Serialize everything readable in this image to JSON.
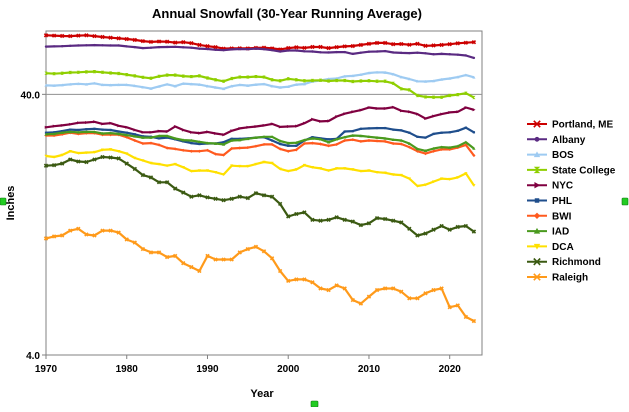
{
  "chart_data": {
    "type": "line",
    "title": "Annual Snowfall (30-Year Running Average)",
    "xlabel": "Year",
    "ylabel": "Inches",
    "yscale": "log",
    "ylim": [
      4.0,
      70
    ],
    "xlim": [
      1970,
      2024
    ],
    "y_ticks": [
      {
        "value": 4.0,
        "label": "4.0"
      },
      {
        "value": 40.0,
        "label": "40.0"
      }
    ],
    "x_ticks": [
      1970,
      1980,
      1990,
      2000,
      2010,
      2020
    ],
    "x": [
      1970,
      1971,
      1972,
      1973,
      1974,
      1975,
      1976,
      1977,
      1978,
      1979,
      1980,
      1981,
      1982,
      1983,
      1984,
      1985,
      1986,
      1987,
      1988,
      1989,
      1990,
      1991,
      1992,
      1993,
      1994,
      1995,
      1996,
      1997,
      1998,
      1999,
      2000,
      2001,
      2002,
      2003,
      2004,
      2005,
      2006,
      2007,
      2008,
      2009,
      2010,
      2011,
      2012,
      2013,
      2014,
      2015,
      2016,
      2017,
      2018,
      2019,
      2020,
      2021,
      2022,
      2023
    ],
    "grid": "horizontal at 40.0",
    "legend": "right",
    "series": [
      {
        "name": "Portland, ME",
        "color": "#cc0000",
        "marker": "x",
        "values": [
          67.4,
          67.2,
          67.0,
          66.9,
          67.2,
          67.4,
          66.9,
          66.4,
          66.0,
          65.6,
          65.2,
          64.7,
          64.0,
          63.6,
          63.8,
          63.7,
          63.2,
          63.4,
          62.9,
          61.9,
          61.2,
          60.7,
          59.9,
          60.0,
          60.1,
          60.0,
          60.3,
          60.4,
          60.0,
          59.5,
          60.2,
          60.6,
          60.3,
          60.8,
          60.8,
          60.2,
          60.7,
          61.1,
          61.3,
          61.9,
          62.5,
          63.0,
          63.0,
          62.3,
          62.4,
          62.0,
          62.5,
          61.4,
          61.6,
          61.9,
          62.3,
          62.8,
          63.1,
          63.4
        ]
      },
      {
        "name": "Albany",
        "color": "#5a2a82",
        "marker": "circle",
        "values": [
          61.0,
          61.1,
          61.2,
          61.4,
          61.6,
          61.7,
          61.8,
          61.7,
          61.6,
          61.6,
          61.1,
          60.7,
          60.2,
          60.4,
          60.7,
          60.8,
          60.9,
          60.6,
          60.4,
          59.9,
          59.7,
          59.3,
          59.1,
          59.5,
          59.7,
          59.6,
          59.9,
          59.6,
          59.1,
          58.4,
          58.9,
          58.9,
          58.5,
          58.4,
          58.0,
          57.9,
          58.1,
          58.1,
          57.2,
          57.8,
          58.3,
          58.4,
          58.6,
          57.9,
          57.7,
          57.6,
          57.8,
          57.5,
          57.0,
          57.2,
          57.0,
          56.8,
          56.4,
          55.2
        ]
      },
      {
        "name": "BOS",
        "color": "#9ecbf2",
        "marker": "triangle",
        "values": [
          43.3,
          43.2,
          43.4,
          43.7,
          43.9,
          43.7,
          44.1,
          43.5,
          43.4,
          43.5,
          43.5,
          43.1,
          42.6,
          42.1,
          42.9,
          43.7,
          43.0,
          44.0,
          43.8,
          43.6,
          43.0,
          42.5,
          42.0,
          43.0,
          43.5,
          43.2,
          43.6,
          43.8,
          43.0,
          42.5,
          42.8,
          43.6,
          43.8,
          44.8,
          45.2,
          45.8,
          46.0,
          46.9,
          47.1,
          47.6,
          48.3,
          48.6,
          48.5,
          47.8,
          46.6,
          45.8,
          44.9,
          44.8,
          45.0,
          45.6,
          46.0,
          46.6,
          47.4,
          46.5
        ]
      },
      {
        "name": "State College",
        "color": "#8fcf00",
        "marker": "hourglass",
        "values": [
          48.2,
          48.0,
          48.2,
          48.5,
          48.6,
          48.8,
          48.9,
          48.6,
          48.3,
          48.1,
          47.6,
          47.1,
          46.5,
          46.1,
          46.9,
          47.4,
          47.4,
          47.0,
          46.8,
          47.1,
          46.2,
          45.5,
          44.9,
          46.0,
          46.6,
          46.6,
          46.8,
          46.6,
          45.5,
          45.1,
          45.9,
          45.5,
          45.1,
          45.2,
          45.3,
          45.0,
          45.2,
          45.2,
          44.8,
          45.0,
          45.1,
          44.9,
          44.9,
          44.1,
          42.0,
          41.6,
          39.6,
          39.1,
          39.0,
          39.0,
          39.6,
          39.9,
          40.4,
          38.9
        ]
      },
      {
        "name": "NYC",
        "color": "#800040",
        "marker": "triangle-right",
        "values": [
          29.9,
          30.2,
          30.4,
          30.7,
          31.1,
          31.2,
          31.4,
          30.8,
          31.0,
          30.3,
          29.9,
          29.2,
          28.6,
          28.6,
          28.9,
          28.8,
          30.1,
          29.2,
          28.6,
          28.4,
          28.7,
          28.3,
          28.0,
          29.0,
          29.6,
          29.9,
          30.1,
          30.4,
          30.8,
          30.0,
          30.1,
          30.2,
          31.0,
          32.1,
          31.5,
          31.6,
          32.9,
          33.7,
          34.3,
          34.8,
          35.6,
          35.3,
          35.3,
          35.7,
          34.6,
          34.3,
          33.6,
          32.3,
          33.0,
          33.6,
          34.1,
          34.3,
          35.6,
          34.9
        ]
      },
      {
        "name": "PHL",
        "color": "#1f4e8c",
        "marker": "square",
        "values": [
          28.5,
          28.6,
          28.9,
          29.3,
          29.2,
          29.4,
          29.5,
          29.3,
          29.2,
          28.8,
          28.5,
          28.1,
          27.6,
          27.5,
          27.1,
          27.3,
          26.9,
          26.4,
          26.0,
          25.8,
          25.9,
          25.9,
          26.2,
          27.0,
          27.0,
          27.1,
          27.3,
          27.4,
          26.6,
          25.8,
          25.4,
          25.4,
          26.6,
          27.4,
          27.1,
          26.9,
          27.0,
          28.8,
          28.9,
          29.5,
          29.6,
          29.7,
          29.7,
          29.3,
          29.1,
          28.5,
          27.5,
          27.3,
          28.2,
          28.5,
          28.6,
          29.0,
          29.8,
          28.6
        ]
      },
      {
        "name": "BWI",
        "color": "#ff5a1f",
        "marker": "diamond",
        "values": [
          27.8,
          27.8,
          28.1,
          28.5,
          28.2,
          28.4,
          28.4,
          28.0,
          28.0,
          28.0,
          27.4,
          26.6,
          25.9,
          26.0,
          25.6,
          24.9,
          24.7,
          24.4,
          24.2,
          24.2,
          24.4,
          23.6,
          23.4,
          24.8,
          24.9,
          25.0,
          25.3,
          25.7,
          25.7,
          24.7,
          24.2,
          24.5,
          25.9,
          26.0,
          25.8,
          25.4,
          25.7,
          26.6,
          26.8,
          26.4,
          26.6,
          26.5,
          26.4,
          25.9,
          25.8,
          25.1,
          24.2,
          23.7,
          24.2,
          24.6,
          24.6,
          25.0,
          25.6,
          23.3
        ]
      },
      {
        "name": "IAD",
        "color": "#4a9a1e",
        "marker": "triangle",
        "values": [
          28.1,
          28.2,
          28.5,
          28.7,
          28.6,
          28.7,
          28.7,
          28.3,
          28.4,
          28.2,
          27.9,
          27.6,
          27.3,
          27.3,
          27.7,
          27.7,
          27.1,
          26.7,
          26.6,
          26.3,
          26.0,
          25.9,
          25.7,
          26.6,
          26.7,
          27.0,
          27.3,
          27.5,
          27.5,
          26.5,
          26.0,
          26.1,
          26.7,
          27.1,
          26.9,
          26.2,
          26.9,
          27.4,
          27.8,
          27.7,
          27.5,
          27.3,
          27.1,
          26.8,
          26.6,
          25.9,
          24.7,
          24.3,
          24.8,
          25.1,
          25.0,
          25.3,
          26.2,
          24.8
        ]
      },
      {
        "name": "DCA",
        "color": "#ffe000",
        "marker": "triangle-down",
        "values": [
          23.2,
          23.0,
          23.4,
          24.2,
          23.8,
          23.9,
          24.0,
          24.5,
          24.6,
          24.2,
          23.7,
          22.8,
          22.3,
          21.8,
          21.6,
          21.3,
          21.6,
          21.0,
          20.3,
          20.4,
          20.4,
          20.1,
          19.7,
          21.3,
          21.2,
          21.2,
          21.6,
          22.0,
          21.8,
          20.7,
          20.3,
          20.6,
          21.4,
          21.0,
          20.8,
          20.4,
          20.8,
          20.8,
          20.6,
          20.3,
          20.4,
          20.1,
          20.0,
          19.7,
          19.6,
          19.0,
          17.8,
          18.0,
          18.5,
          19.0,
          18.9,
          19.2,
          19.9,
          17.9
        ]
      },
      {
        "name": "Richmond",
        "color": "#3b5a12",
        "marker": "x",
        "values": [
          21.3,
          21.4,
          21.7,
          22.5,
          22.1,
          22.0,
          22.5,
          23.0,
          22.9,
          22.7,
          21.7,
          20.7,
          19.6,
          19.2,
          18.4,
          18.4,
          17.4,
          16.8,
          16.2,
          16.4,
          16.1,
          15.9,
          15.7,
          15.9,
          16.2,
          16.0,
          16.7,
          16.4,
          16.2,
          15.2,
          13.6,
          13.9,
          14.1,
          13.2,
          13.1,
          13.2,
          13.5,
          13.2,
          13.0,
          12.6,
          12.8,
          13.4,
          13.3,
          13.1,
          12.9,
          12.2,
          11.5,
          11.7,
          12.1,
          12.5,
          12.1,
          12.4,
          12.5,
          11.9
        ]
      },
      {
        "name": "Raleigh",
        "color": "#ff9a1a",
        "marker": "x",
        "values": [
          11.2,
          11.4,
          11.5,
          12.0,
          12.2,
          11.6,
          11.5,
          12.0,
          12.0,
          11.8,
          11.1,
          10.8,
          10.2,
          9.9,
          9.9,
          9.5,
          9.6,
          9.0,
          8.7,
          8.4,
          9.6,
          9.3,
          9.3,
          9.3,
          9.9,
          10.2,
          10.4,
          10.0,
          9.4,
          8.4,
          7.7,
          7.8,
          7.8,
          7.6,
          7.2,
          7.1,
          7.4,
          7.2,
          6.5,
          6.3,
          6.7,
          7.1,
          7.2,
          7.2,
          7.0,
          6.6,
          6.6,
          6.9,
          7.1,
          7.2,
          6.1,
          6.2,
          5.6,
          5.4
        ]
      }
    ]
  }
}
